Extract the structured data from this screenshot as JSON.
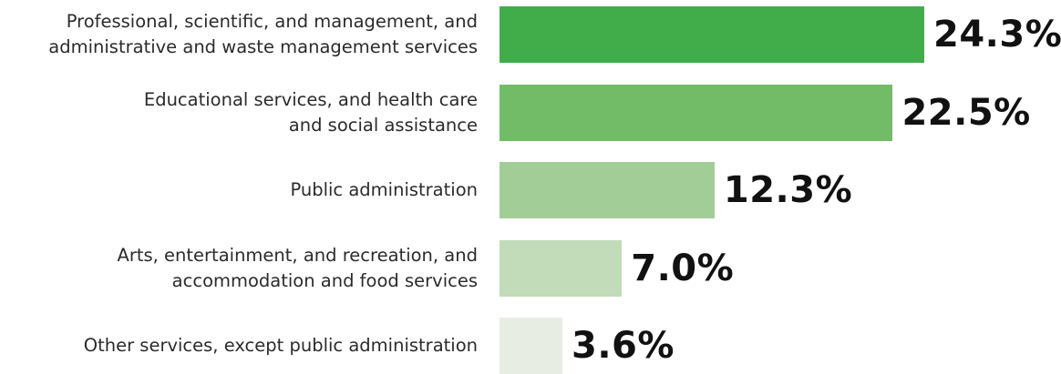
{
  "chart_data": {
    "type": "bar",
    "orientation": "horizontal",
    "categories": [
      [
        "Professional, scientific, and management, and",
        "administrative and waste management services"
      ],
      [
        "Educational services, and health care",
        "and social assistance"
      ],
      [
        "Public administration"
      ],
      [
        "Arts, entertainment, and recreation, and",
        "accommodation and food services"
      ],
      [
        "Other services, except public administration"
      ]
    ],
    "values": [
      24.3,
      22.5,
      12.3,
      7.0,
      3.6
    ],
    "value_labels": [
      "24.3%",
      "22.5%",
      "12.3%",
      "7.0%",
      "3.6%"
    ],
    "colors": [
      "#41ad4a",
      "#72bb67",
      "#a3cd96",
      "#c2dbb9",
      "#e8ede4"
    ],
    "xlim": [
      0,
      25.6
    ],
    "grid": false,
    "legend": "none"
  }
}
